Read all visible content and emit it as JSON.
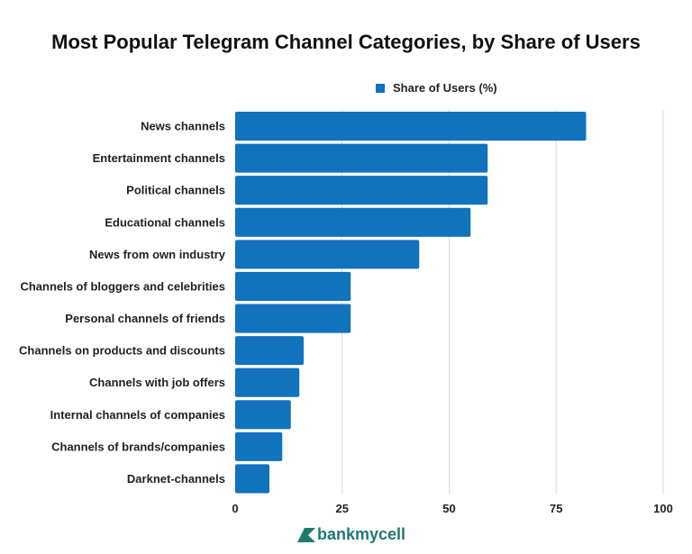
{
  "chart_data": {
    "type": "bar",
    "orientation": "horizontal",
    "title": "Most Popular Telegram Channel Categories, by Share of Users",
    "categories": [
      "News channels",
      "Entertainment channels",
      "Political channels",
      "Educational channels",
      "News from own industry",
      "Channels of bloggers and celebrities",
      "Personal channels of friends",
      "Channels on products and discounts",
      "Channels with job offers",
      "Internal channels of companies",
      "Channels of brands/companies",
      "Darknet-channels"
    ],
    "series": [
      {
        "name": "Share of Users (%)",
        "values": [
          82,
          59,
          59,
          55,
          43,
          27,
          27,
          16,
          15,
          13,
          11,
          8
        ],
        "color": "#1172bd"
      }
    ],
    "xlim": [
      0,
      100
    ],
    "xticks": [
      "0",
      "25",
      "50",
      "75",
      "100"
    ],
    "grid": true,
    "legend": "top"
  },
  "logo": {
    "text": "bankmycell",
    "color": "#1f7a6e"
  }
}
